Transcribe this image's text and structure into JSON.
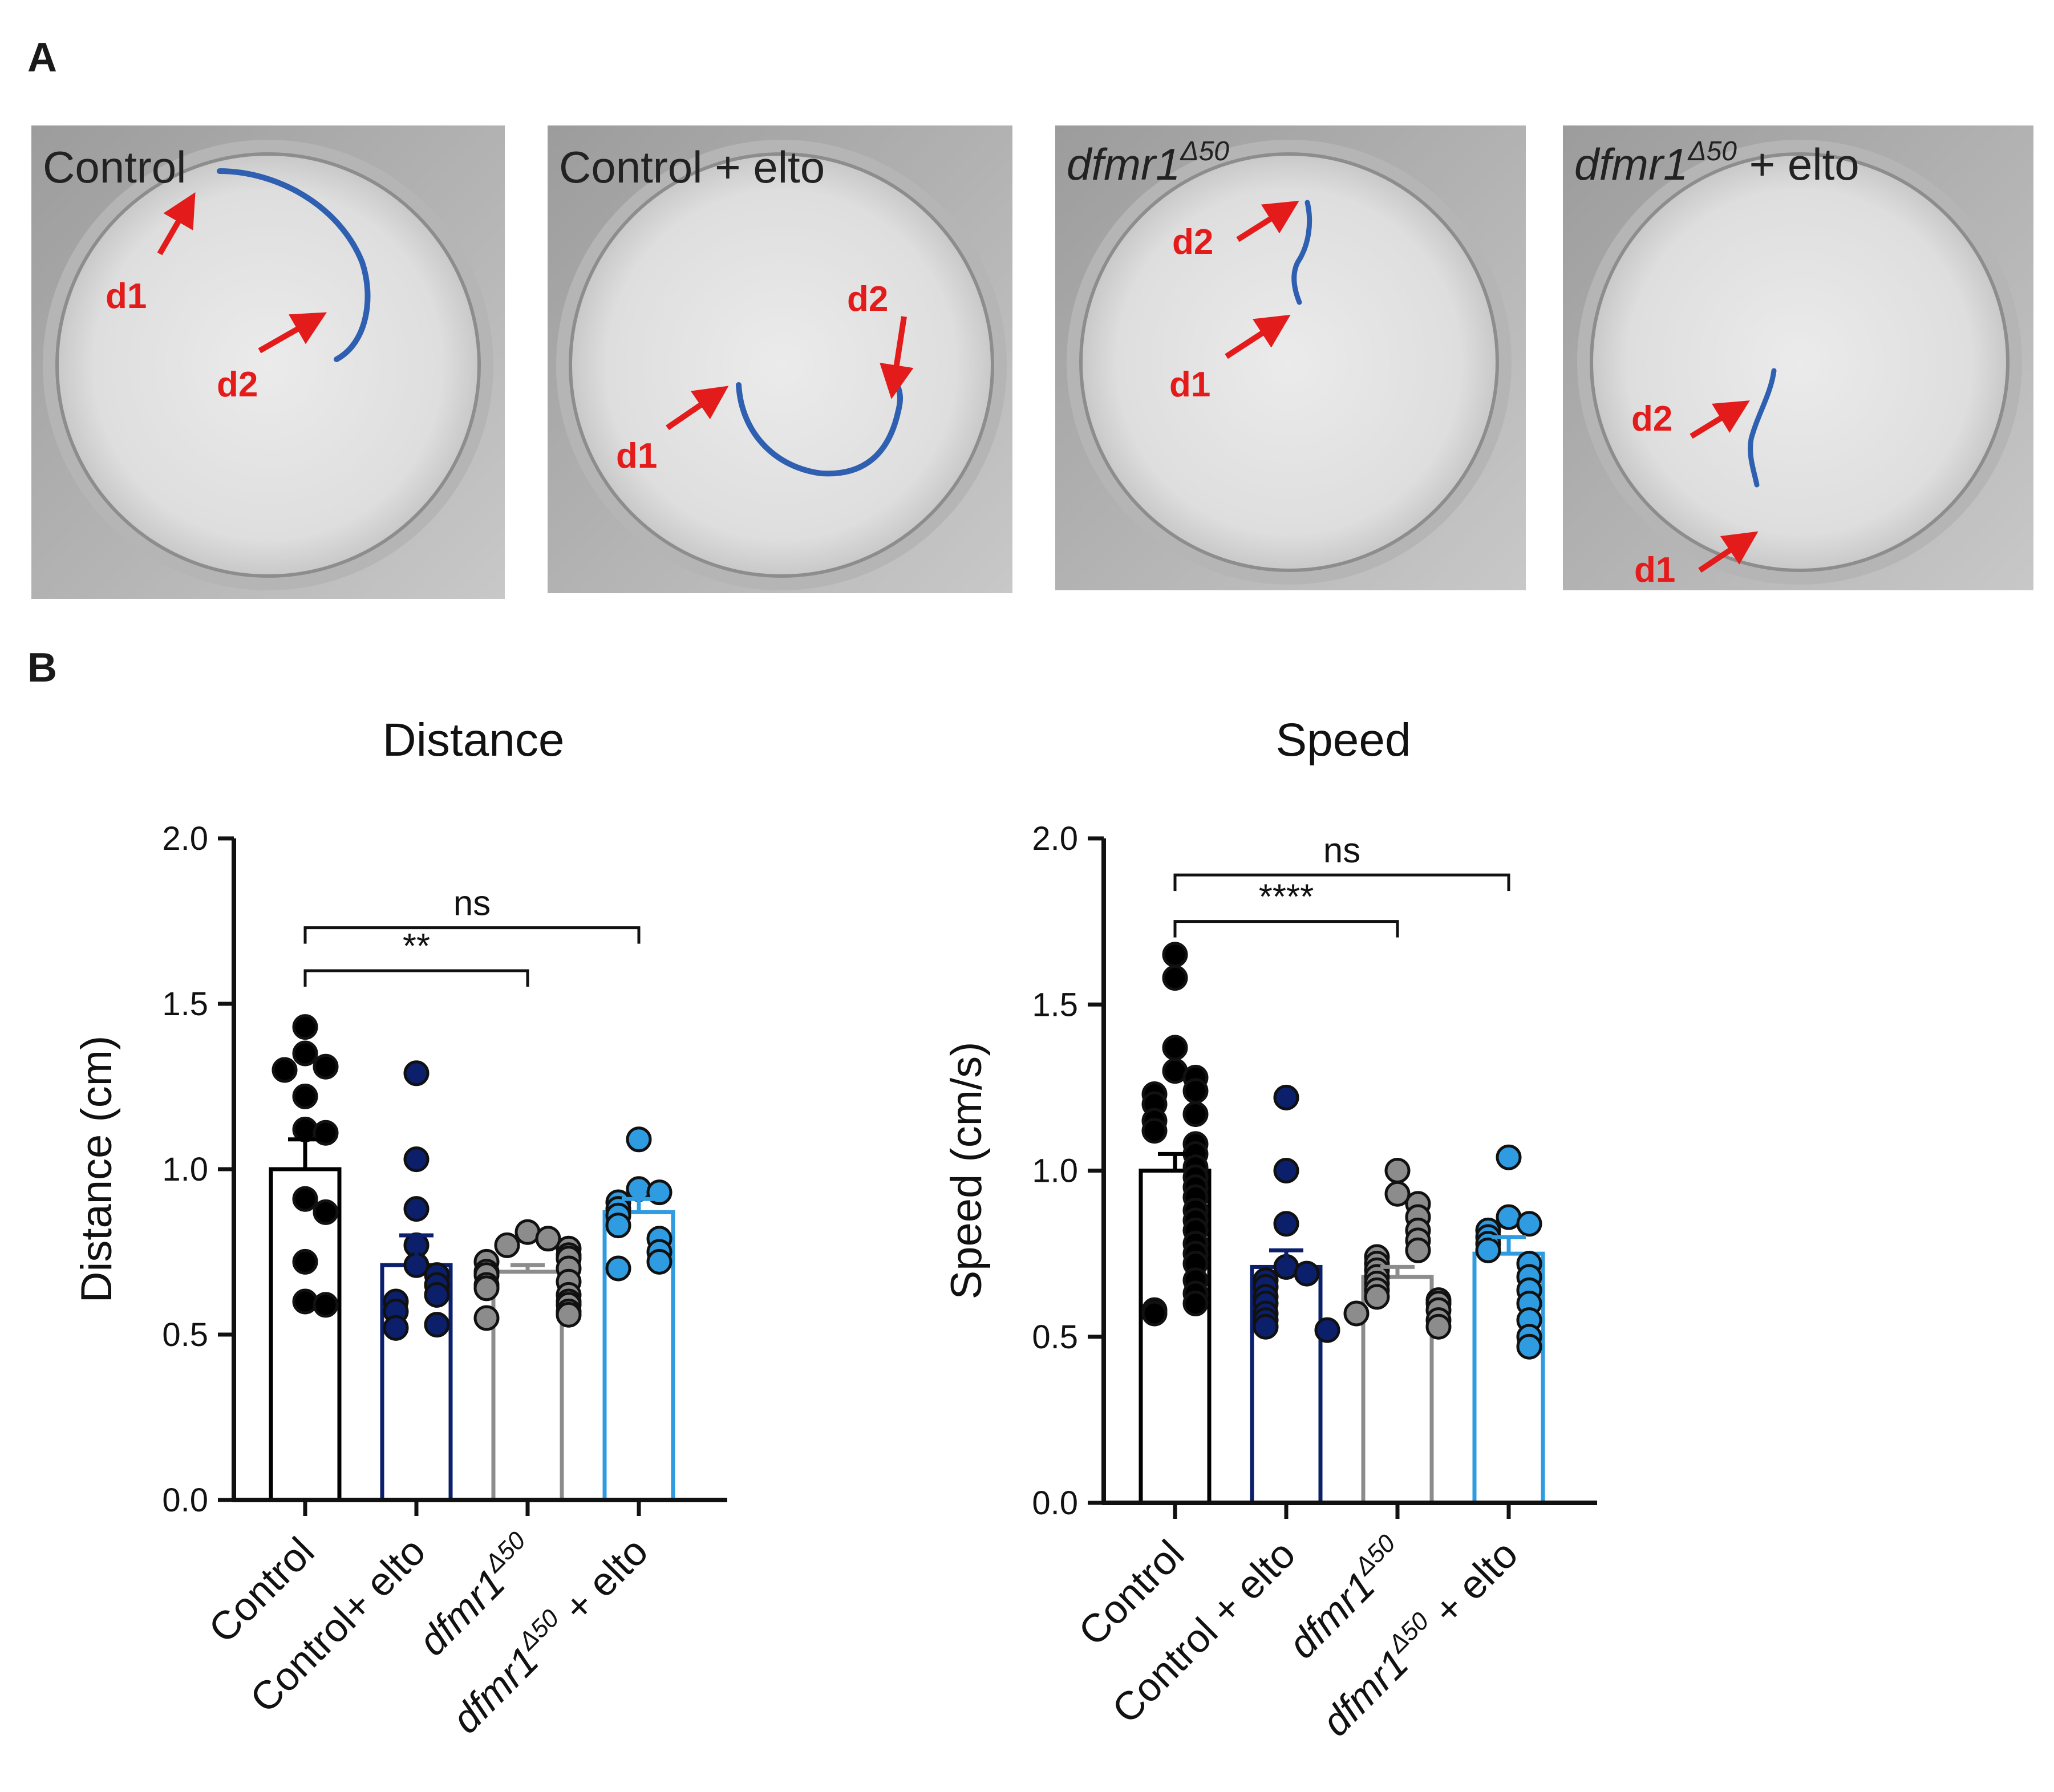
{
  "panels": {
    "a": "A",
    "b": "B"
  },
  "photos": [
    {
      "label": "Control",
      "label_sup": "",
      "label_suffix": "",
      "italic": false,
      "d1": "d1",
      "d2": "d2"
    },
    {
      "label": "Control + elto",
      "label_sup": "",
      "label_suffix": "",
      "italic": false,
      "d1": "d1",
      "d2": "d2"
    },
    {
      "label": "dfmr1",
      "label_sup": "Δ50",
      "label_suffix": "",
      "italic": true,
      "d1": "d1",
      "d2": "d2"
    },
    {
      "label": "dfmr1",
      "label_sup": "Δ50",
      "label_suffix": " + elto",
      "italic": true,
      "d1": "d1",
      "d2": "d2"
    }
  ],
  "colors": {
    "control": "#000000",
    "control_elto": "#0b1f6b",
    "dfmr1": "#8c8c8c",
    "dfmr1_elto": "#2f9be0",
    "arrow": "#e31b1b",
    "track": "#2f5fb0"
  },
  "chart_data": [
    {
      "type": "bar",
      "title": "Distance",
      "ylabel": "Distance (cm)",
      "xlabel": "",
      "ylim": [
        0,
        2.0
      ],
      "yticks": [
        "0.0",
        "0.5",
        "1.0",
        "1.5",
        "2.0"
      ],
      "categories": [
        {
          "label": "Control",
          "sup": "",
          "suffix": "",
          "italic": false
        },
        {
          "label": "Control+ elto",
          "sup": "",
          "suffix": "",
          "italic": false
        },
        {
          "label": "dfmr1",
          "sup": "Δ50",
          "suffix": "",
          "italic": true
        },
        {
          "label": "dfmr1",
          "sup": "Δ50",
          "suffix": " + elto",
          "italic": true
        }
      ],
      "means": [
        1.0,
        0.71,
        0.69,
        0.87
      ],
      "sem": [
        0.09,
        0.09,
        0.02,
        0.04
      ],
      "points": [
        [
          1.43,
          1.35,
          1.31,
          1.3,
          1.22,
          1.12,
          1.11,
          0.91,
          0.87,
          0.72,
          0.6,
          0.59
        ],
        [
          1.29,
          1.03,
          0.88,
          0.77,
          0.71,
          0.68,
          0.65,
          0.62,
          0.6,
          0.57,
          0.53,
          0.52
        ],
        [
          0.81,
          0.79,
          0.77,
          0.76,
          0.74,
          0.73,
          0.72,
          0.7,
          0.69,
          0.68,
          0.66,
          0.65,
          0.64,
          0.62,
          0.6,
          0.59,
          0.57,
          0.56,
          0.55
        ],
        [
          1.09,
          0.94,
          0.93,
          0.9,
          0.88,
          0.86,
          0.83,
          0.79,
          0.75,
          0.72,
          0.7
        ]
      ],
      "significance": [
        {
          "from": 0,
          "to": 2,
          "label": "**",
          "y": 1.6
        },
        {
          "from": 0,
          "to": 3,
          "label": "ns",
          "y": 1.73
        }
      ]
    },
    {
      "type": "bar",
      "title": "Speed",
      "ylabel": "Speed (cm/s)",
      "xlabel": "",
      "ylim": [
        0,
        2.0
      ],
      "yticks": [
        "0.0",
        "0.5",
        "1.0",
        "1.5",
        "2.0"
      ],
      "categories": [
        {
          "label": "Control",
          "sup": "",
          "suffix": "",
          "italic": false
        },
        {
          "label": "Control + elto",
          "sup": "",
          "suffix": "",
          "italic": false
        },
        {
          "label": "dfmr1",
          "sup": "Δ50",
          "suffix": "",
          "italic": true
        },
        {
          "label": "dfmr1",
          "sup": "Δ50",
          "suffix": " + elto",
          "italic": true
        }
      ],
      "means": [
        1.0,
        0.71,
        0.68,
        0.75
      ],
      "sem": [
        0.05,
        0.05,
        0.03,
        0.05
      ],
      "points": [
        [
          1.65,
          1.58,
          1.37,
          1.3,
          1.28,
          1.24,
          1.23,
          1.2,
          1.17,
          1.15,
          1.12,
          1.08,
          1.05,
          1.01,
          0.98,
          0.95,
          0.92,
          0.88,
          0.85,
          0.82,
          0.78,
          0.75,
          0.72,
          0.67,
          0.63,
          0.6,
          0.58,
          0.57
        ],
        [
          1.22,
          1.0,
          0.84,
          0.71,
          0.69,
          0.67,
          0.65,
          0.62,
          0.6,
          0.57,
          0.55,
          0.53,
          0.52
        ],
        [
          1.0,
          0.93,
          0.9,
          0.86,
          0.82,
          0.79,
          0.76,
          0.74,
          0.72,
          0.7,
          0.68,
          0.66,
          0.64,
          0.62,
          0.61,
          0.6,
          0.58,
          0.57,
          0.55,
          0.53
        ],
        [
          1.04,
          0.86,
          0.84,
          0.82,
          0.8,
          0.78,
          0.76,
          0.72,
          0.68,
          0.64,
          0.6,
          0.55,
          0.5,
          0.47
        ]
      ],
      "significance": [
        {
          "from": 0,
          "to": 2,
          "label": "****",
          "y": 1.75
        },
        {
          "from": 0,
          "to": 3,
          "label": "ns",
          "y": 1.89
        }
      ]
    }
  ]
}
